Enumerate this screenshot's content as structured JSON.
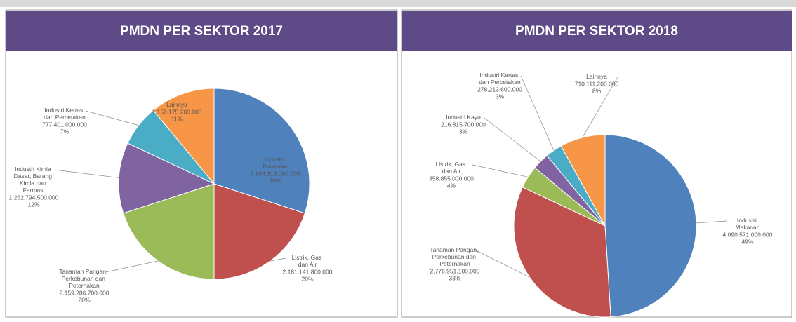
{
  "chart_data": [
    {
      "type": "pie",
      "title": "PMDN PER SEKTOR 2017",
      "categories": [
        "Industri Makanan",
        "Listrik, Gas dan Air",
        "Tanaman Pangan, Perkebunan dan Peternakan",
        "Industri Kimia Dasar, Barang Kimia dan Farmasi",
        "Industri Kertas dan Percetakan",
        "Lainnya"
      ],
      "amounts": [
        "3.184.319.080.000",
        "2.181.141.800.000",
        "2.159.286.700.000",
        "1.262.794.500.000",
        "777.401.000.000",
        "1.158.175.200.000"
      ],
      "values": [
        30,
        20,
        20,
        12,
        7,
        11
      ],
      "value_labels": [
        "30%",
        "20%",
        "20%",
        "12%",
        "7%",
        "11%"
      ],
      "colors": [
        "#4f81bd",
        "#c0504d",
        "#9bbb59",
        "#8064a2",
        "#4bacc6",
        "#f79646"
      ]
    },
    {
      "type": "pie",
      "title": "PMDN PER SEKTOR 2018",
      "categories": [
        "Industri Makanan",
        "Tanaman Pangan, Perkebunan dan Peternakan",
        "Listrik, Gas dan Air",
        "Industri Kayu",
        "Industri Kertas dan Percetakan",
        "Lainnya"
      ],
      "amounts": [
        "4.090.571.000.000",
        "2.776.951.100.000",
        "358.855.000.000",
        "216.815.700.000",
        "278.213.600.000",
        "710.111.200.000"
      ],
      "values": [
        49,
        33,
        4,
        3,
        3,
        8
      ],
      "value_labels": [
        "49%",
        "33%",
        "4%",
        "3%",
        "3%",
        "8%"
      ],
      "colors": [
        "#4f81bd",
        "#c0504d",
        "#9bbb59",
        "#8064a2",
        "#4bacc6",
        "#f79646"
      ]
    }
  ]
}
